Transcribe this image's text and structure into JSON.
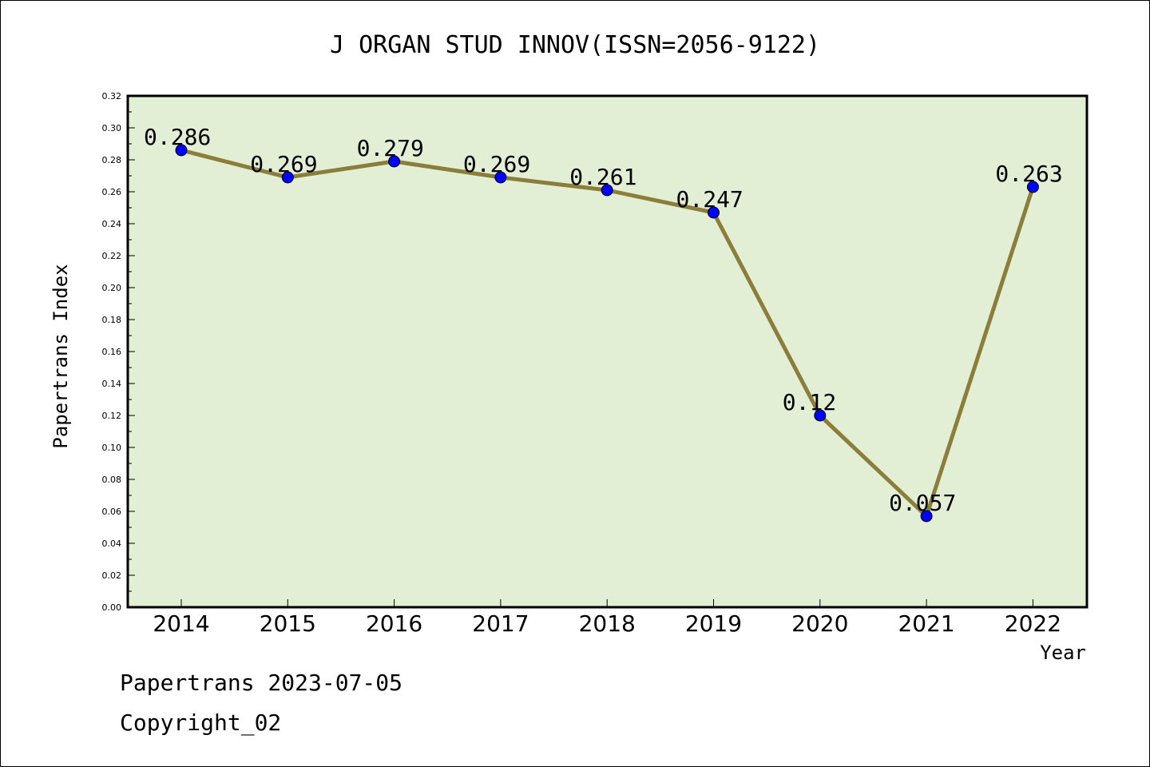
{
  "chart_data": {
    "type": "line",
    "title": "J ORGAN STUD INNOV(ISSN=2056-9122)",
    "xlabel": "Year",
    "ylabel": "Papertrans Index",
    "categories": [
      "2014",
      "2015",
      "2016",
      "2017",
      "2018",
      "2019",
      "2020",
      "2021",
      "2022"
    ],
    "values": [
      0.286,
      0.269,
      0.279,
      0.269,
      0.261,
      0.247,
      0.12,
      0.057,
      0.263
    ],
    "data_labels": [
      "0.286",
      "0.269",
      "0.279",
      "0.269",
      "0.261",
      "0.247",
      "0.12",
      "0.057",
      "0.263"
    ],
    "ylim": [
      0,
      0.32
    ],
    "yticks": [
      "0.00",
      "0.02",
      "0.04",
      "0.06",
      "0.08",
      "0.10",
      "0.12",
      "0.14",
      "0.16",
      "0.18",
      "0.20",
      "0.22",
      "0.24",
      "0.26",
      "0.28",
      "0.30",
      "0.32"
    ],
    "grid": false,
    "colors": {
      "plot_background": "#e2efd5",
      "line": "#8b7d3a",
      "marker": "#0000ff"
    }
  },
  "footer": {
    "line1": "Papertrans 2023-07-05",
    "line2": "Copyright_02"
  }
}
